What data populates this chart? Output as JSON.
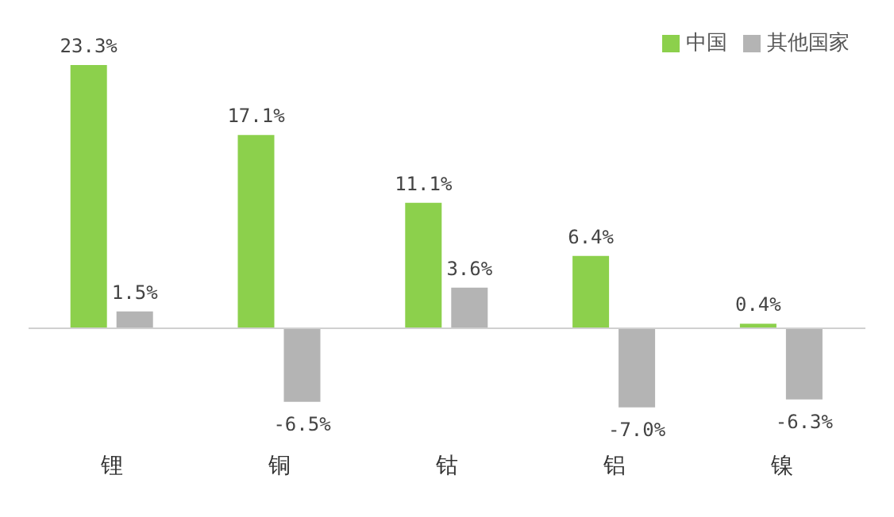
{
  "chart_data": {
    "type": "bar",
    "categories": [
      "锂",
      "铜",
      "钴",
      "铝",
      "镍"
    ],
    "series": [
      {
        "name": "中国",
        "color": "#8cd04c",
        "values": [
          23.3,
          17.1,
          11.1,
          6.4,
          0.4
        ],
        "value_labels": [
          "23.3%",
          "17.1%",
          "11.1%",
          "6.4%",
          "0.4%"
        ]
      },
      {
        "name": "其他国家",
        "color": "#b4b4b4",
        "values": [
          1.5,
          -6.5,
          3.6,
          -7.0,
          -6.3
        ],
        "value_labels": [
          "1.5%",
          "-6.5%",
          "3.6%",
          "-7.0%",
          "-6.3%"
        ]
      }
    ],
    "legend": "top right",
    "grid": false,
    "tick_labels": "x"
  }
}
